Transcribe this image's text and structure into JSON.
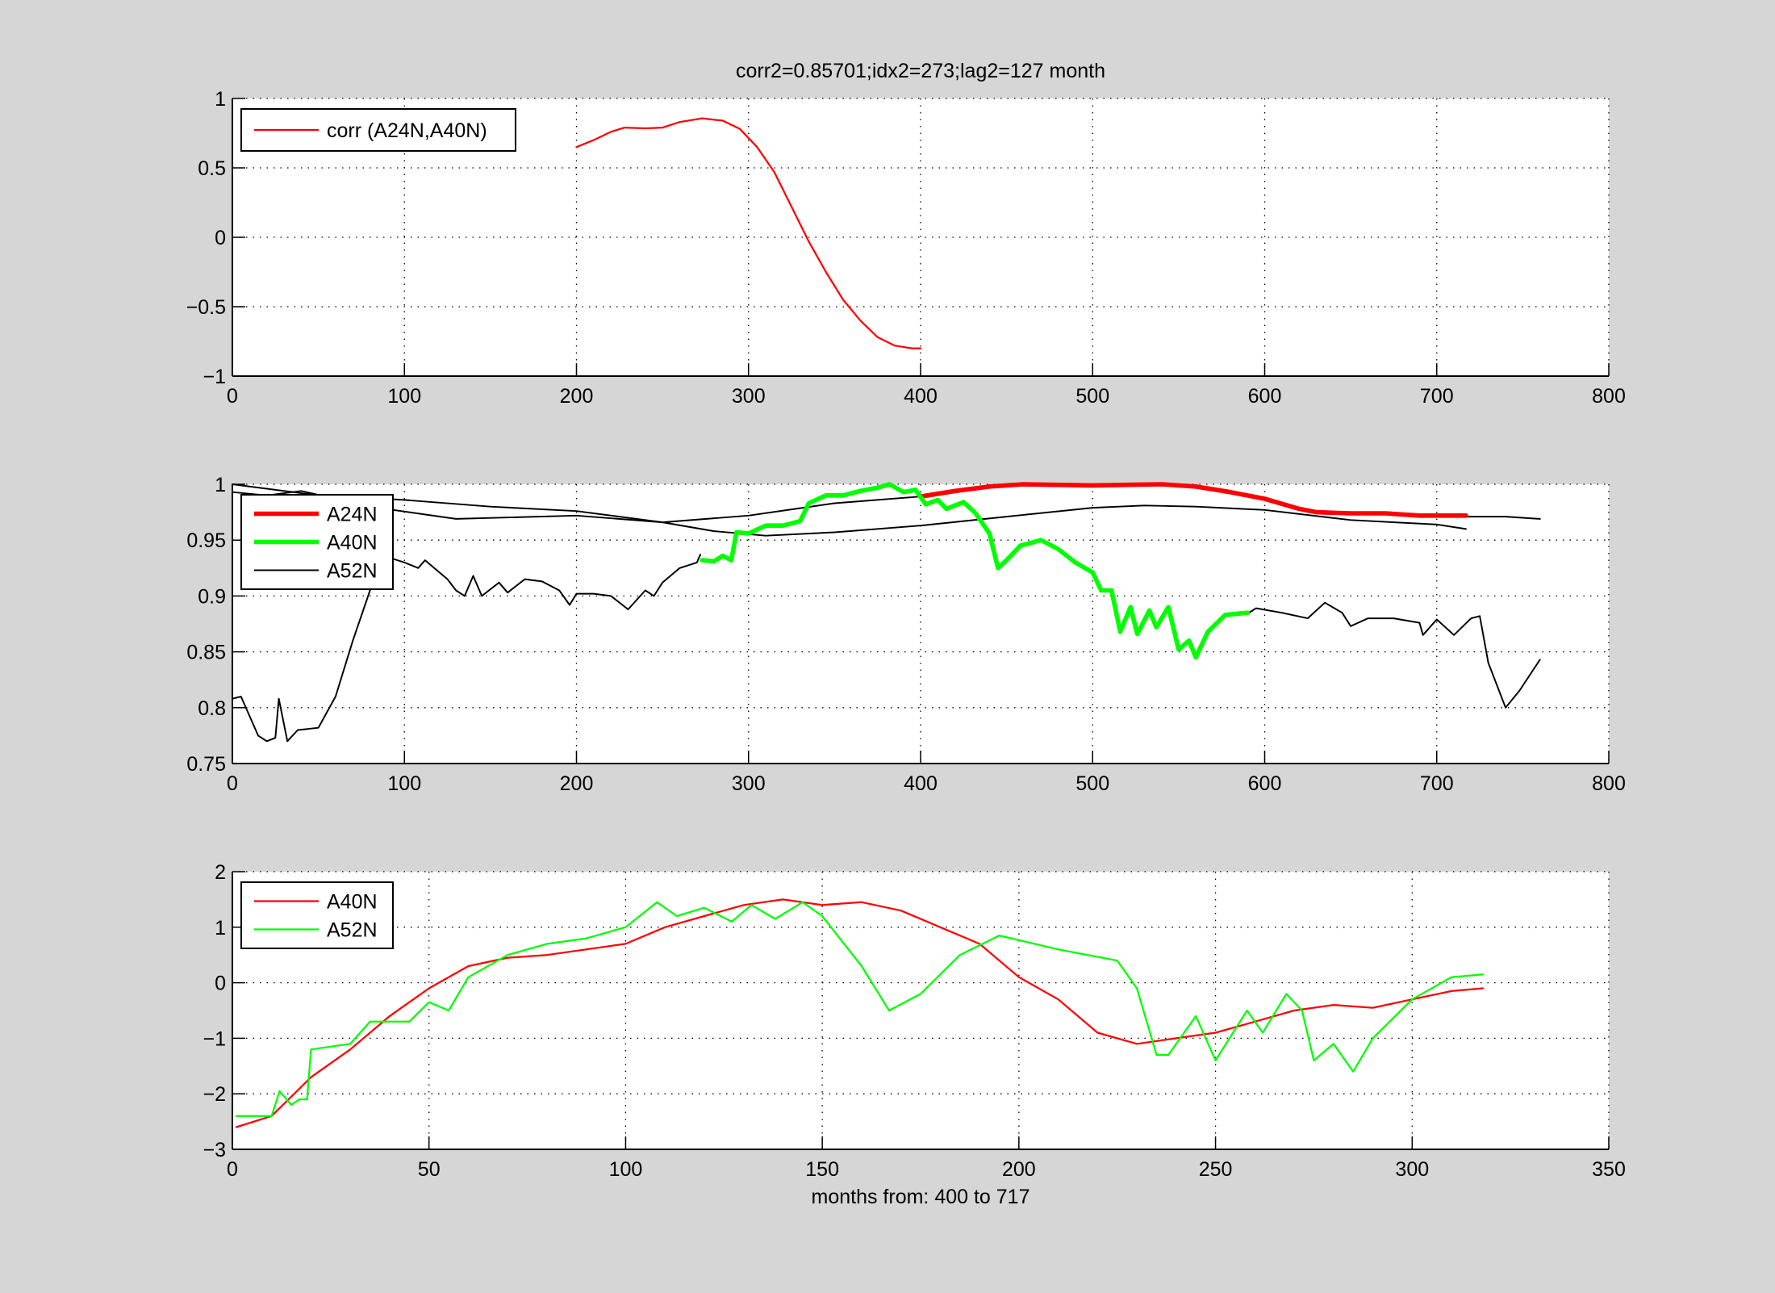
{
  "chart_data": [
    {
      "type": "line",
      "title": "corr2=0.85701;idx2=273;lag2=127 month",
      "xlabel": "",
      "ylabel": "",
      "xlim": [
        0,
        800
      ],
      "ylim": [
        -1,
        1
      ],
      "xticks": [
        0,
        100,
        200,
        300,
        400,
        500,
        600,
        700,
        800
      ],
      "yticks": [
        -1,
        -0.5,
        0,
        0.5,
        1
      ],
      "grid": true,
      "legend_placement": "top-left",
      "series": [
        {
          "name": "corr (A24N,A40N)",
          "color": "#ff0000",
          "width": 1.6,
          "in_legend": true,
          "x": [
            200,
            210,
            220,
            228,
            240,
            250,
            260,
            273,
            285,
            295,
            305,
            315,
            325,
            335,
            345,
            355,
            365,
            375,
            385,
            395,
            400
          ],
          "y": [
            0.65,
            0.7,
            0.76,
            0.79,
            0.785,
            0.79,
            0.83,
            0.857,
            0.84,
            0.78,
            0.65,
            0.47,
            0.22,
            -0.03,
            -0.25,
            -0.45,
            -0.6,
            -0.72,
            -0.78,
            -0.8,
            -0.8
          ]
        }
      ]
    },
    {
      "type": "line",
      "title": "",
      "xlabel": "",
      "ylabel": "",
      "xlim": [
        0,
        800
      ],
      "ylim": [
        0.75,
        1
      ],
      "xticks": [
        0,
        100,
        200,
        300,
        400,
        500,
        600,
        700,
        800
      ],
      "yticks": [
        0.75,
        0.8,
        0.85,
        0.9,
        0.95,
        1
      ],
      "grid": true,
      "legend_placement": "top-left",
      "series": [
        {
          "name": "A52N",
          "color": "#000000",
          "width": 1.4,
          "in_legend": false,
          "x": [
            0,
            50,
            100,
            150,
            200,
            250,
            280,
            310,
            350,
            400,
            450,
            500,
            530,
            560,
            600,
            650,
            700,
            717
          ],
          "y": [
            1.0,
            0.99,
            0.986,
            0.98,
            0.976,
            0.966,
            0.958,
            0.954,
            0.957,
            0.963,
            0.971,
            0.979,
            0.981,
            0.98,
            0.977,
            0.968,
            0.964,
            0.96
          ]
        },
        {
          "name": "A52N",
          "color": "#000000",
          "width": 1.4,
          "in_legend": false,
          "x": [
            0,
            20,
            40,
            80,
            130,
            200,
            250,
            300,
            350,
            400
          ],
          "y": [
            0.993,
            0.99,
            0.994,
            0.98,
            0.969,
            0.972,
            0.966,
            0.972,
            0.983,
            0.989
          ]
        },
        {
          "name": "A52N",
          "color": "#000000",
          "width": 1.4,
          "in_legend": false,
          "x": [
            717,
            740,
            760
          ],
          "y": [
            0.971,
            0.971,
            0.969
          ]
        },
        {
          "name": "A52N",
          "color": "#000000",
          "width": 1.4,
          "in_legend": false,
          "x": [
            0,
            5,
            15,
            20,
            25,
            27,
            32,
            38,
            50,
            60,
            70,
            80,
            90,
            100,
            108,
            112,
            125,
            130,
            135,
            140,
            145,
            155,
            160,
            170,
            180,
            190,
            196,
            200,
            210,
            220,
            230,
            240,
            245,
            250,
            260,
            270,
            272
          ],
          "y": [
            0.808,
            0.81,
            0.775,
            0.77,
            0.773,
            0.808,
            0.77,
            0.78,
            0.782,
            0.81,
            0.86,
            0.905,
            0.935,
            0.93,
            0.925,
            0.932,
            0.915,
            0.905,
            0.9,
            0.918,
            0.9,
            0.912,
            0.903,
            0.915,
            0.913,
            0.905,
            0.892,
            0.902,
            0.902,
            0.9,
            0.888,
            0.905,
            0.9,
            0.912,
            0.925,
            0.93,
            0.937
          ]
        },
        {
          "name": "A52N",
          "color": "#000000",
          "width": 1.4,
          "in_legend": false,
          "x": [
            590,
            595,
            610,
            625,
            635,
            645,
            650,
            660,
            675,
            690,
            692,
            700,
            710,
            720,
            725,
            730,
            740,
            748,
            760
          ],
          "y": [
            0.884,
            0.889,
            0.885,
            0.88,
            0.894,
            0.885,
            0.873,
            0.88,
            0.88,
            0.876,
            0.865,
            0.879,
            0.865,
            0.88,
            0.882,
            0.84,
            0.8,
            0.815,
            0.843
          ]
        },
        {
          "name": "A24N",
          "color": "#ff0000",
          "width": 4,
          "in_legend": true,
          "x": [
            400,
            420,
            440,
            460,
            500,
            540,
            560,
            580,
            600,
            620,
            630,
            650,
            670,
            690,
            717
          ],
          "y": [
            0.989,
            0.994,
            0.998,
            1.0,
            0.999,
            1.0,
            0.998,
            0.993,
            0.987,
            0.978,
            0.975,
            0.974,
            0.974,
            0.972,
            0.972
          ]
        },
        {
          "name": "A40N",
          "color": "#00ff00",
          "width": 4,
          "in_legend": true,
          "x": [
            273,
            280,
            285,
            290,
            293,
            300,
            310,
            320,
            330,
            335,
            345,
            355,
            365,
            375,
            382,
            390,
            397,
            403,
            410,
            415,
            425,
            432,
            440,
            445,
            450,
            458,
            470,
            480,
            490,
            500,
            505,
            511,
            516,
            522,
            526,
            533,
            537,
            544,
            550,
            556,
            560,
            567,
            577,
            590
          ],
          "y": [
            0.932,
            0.931,
            0.936,
            0.932,
            0.957,
            0.956,
            0.963,
            0.963,
            0.967,
            0.983,
            0.99,
            0.99,
            0.994,
            0.997,
            1.0,
            0.993,
            0.995,
            0.982,
            0.986,
            0.978,
            0.984,
            0.974,
            0.956,
            0.925,
            0.932,
            0.945,
            0.95,
            0.942,
            0.93,
            0.921,
            0.905,
            0.905,
            0.868,
            0.89,
            0.866,
            0.887,
            0.872,
            0.89,
            0.852,
            0.86,
            0.845,
            0.868,
            0.883,
            0.885
          ]
        },
        {
          "name": "A52N",
          "color": "#000000",
          "width": 1.4,
          "in_legend": true,
          "x": [],
          "y": []
        }
      ]
    },
    {
      "type": "line",
      "title": "",
      "xlabel": "months from: 400 to 717",
      "ylabel": "",
      "xlim": [
        0,
        350
      ],
      "ylim": [
        -3,
        2
      ],
      "xticks": [
        0,
        50,
        100,
        150,
        200,
        250,
        300,
        350
      ],
      "yticks": [
        -3,
        -2,
        -1,
        0,
        1,
        2
      ],
      "grid": true,
      "legend_placement": "top-left",
      "series": [
        {
          "name": "A40N",
          "color": "#ff0000",
          "width": 1.6,
          "in_legend": true,
          "x": [
            1,
            10,
            20,
            30,
            40,
            50,
            60,
            70,
            80,
            100,
            110,
            120,
            130,
            140,
            150,
            160,
            170,
            180,
            190,
            200,
            210,
            220,
            230,
            240,
            250,
            260,
            270,
            280,
            290,
            300,
            310,
            318
          ],
          "y": [
            -2.6,
            -2.4,
            -1.7,
            -1.2,
            -0.6,
            -0.1,
            0.3,
            0.45,
            0.5,
            0.7,
            1.0,
            1.2,
            1.4,
            1.5,
            1.4,
            1.45,
            1.3,
            1.0,
            0.7,
            0.1,
            -0.3,
            -0.9,
            -1.1,
            -1.0,
            -0.9,
            -0.7,
            -0.5,
            -0.4,
            -0.45,
            -0.3,
            -0.15,
            -0.1
          ]
        },
        {
          "name": "A52N",
          "color": "#00ff00",
          "width": 1.6,
          "in_legend": true,
          "x": [
            1,
            10,
            12,
            15,
            17,
            19,
            20,
            30,
            35,
            40,
            45,
            50,
            55,
            60,
            70,
            80,
            90,
            100,
            108,
            113,
            120,
            127,
            132,
            138,
            145,
            150,
            160,
            167,
            175,
            185,
            195,
            210,
            225,
            230,
            235,
            238,
            245,
            250,
            258,
            262,
            268,
            272,
            275,
            280,
            285,
            290,
            300,
            310,
            318
          ],
          "y": [
            -2.4,
            -2.4,
            -1.95,
            -2.2,
            -2.1,
            -2.1,
            -1.2,
            -1.1,
            -0.7,
            -0.7,
            -0.7,
            -0.35,
            -0.5,
            0.1,
            0.5,
            0.7,
            0.8,
            1.0,
            1.45,
            1.2,
            1.35,
            1.1,
            1.4,
            1.15,
            1.45,
            1.2,
            0.3,
            -0.5,
            -0.2,
            0.5,
            0.85,
            0.6,
            0.4,
            -0.1,
            -1.3,
            -1.3,
            -0.6,
            -1.4,
            -0.5,
            -0.9,
            -0.2,
            -0.5,
            -1.4,
            -1.1,
            -1.6,
            -1.0,
            -0.3,
            0.1,
            0.15
          ]
        }
      ]
    }
  ]
}
